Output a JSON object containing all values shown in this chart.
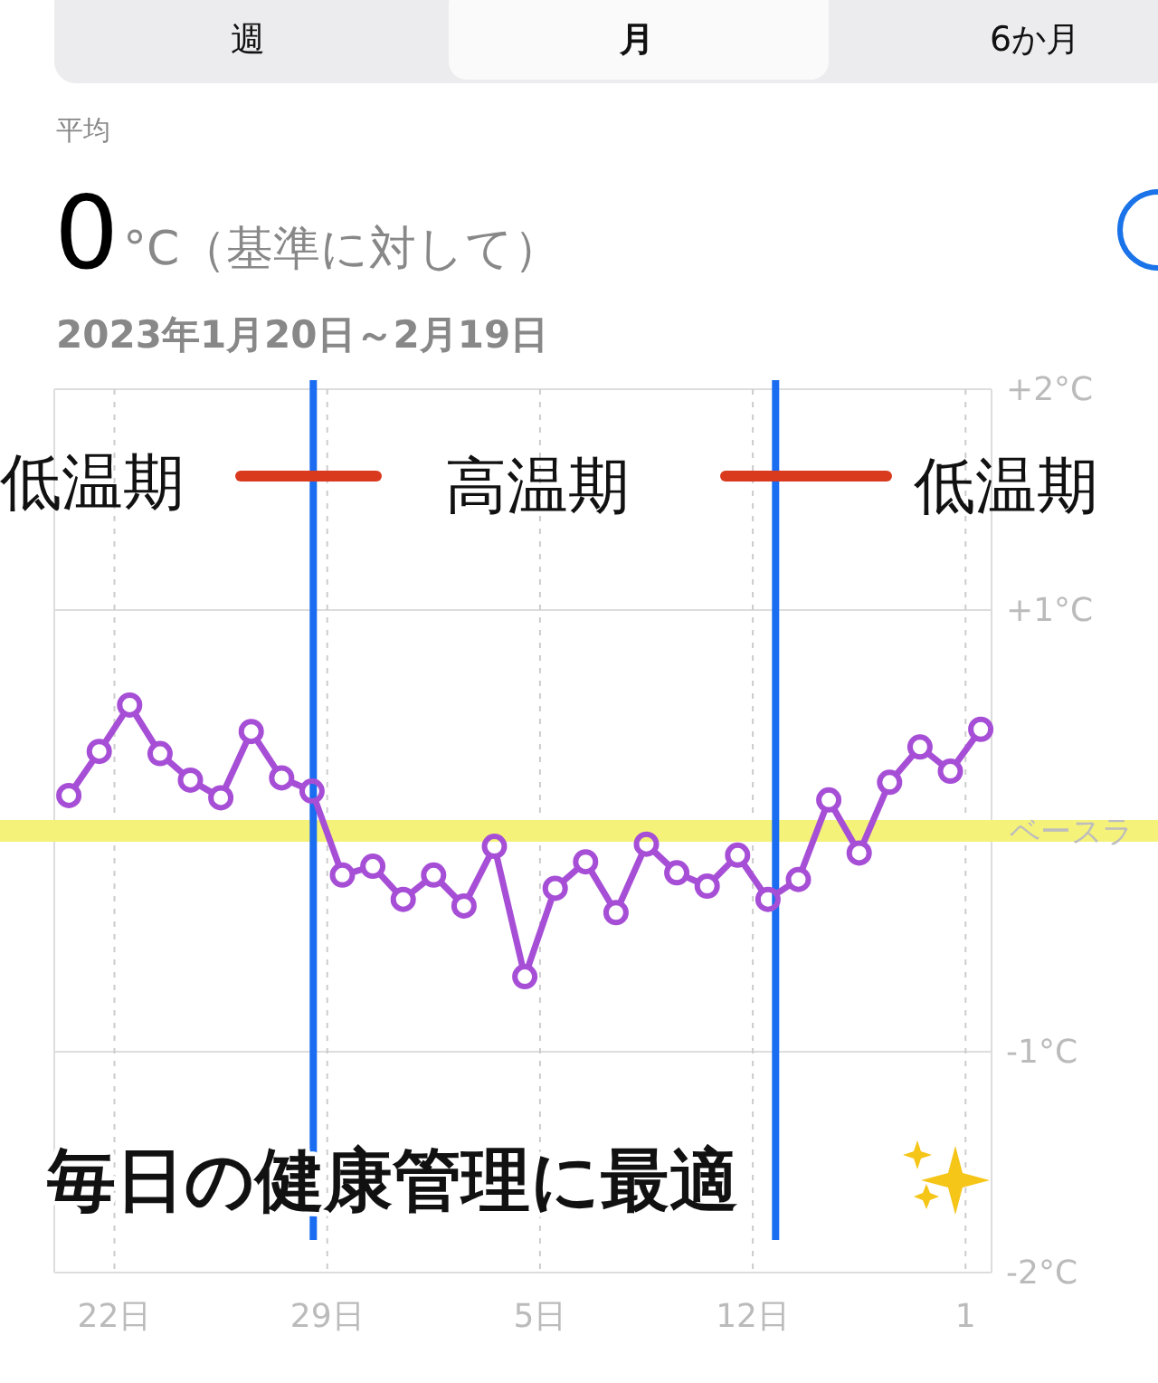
{
  "chart_data": {
    "type": "line",
    "title": "0",
    "subtitle": "°C（基準に対して）",
    "annotations": [
      "週",
      "月",
      "6か月",
      "平均",
      "2023年1月20日～2月19日",
      "低温期",
      "高温期",
      "低温期",
      "毎日の健康管理に最適"
    ],
    "x": [
      "2023-01-20T12:00",
      "2023-01-21T12:00",
      "2023-01-22T12:00",
      "2023-01-23T12:00",
      "2023-01-24T12:00",
      "2023-01-25T12:00",
      "2023-01-26T12:00",
      "2023-01-27T12:00",
      "2023-01-28T12:00",
      "2023-01-29T12:00",
      "2023-01-30T12:00",
      "2023-01-31T12:00",
      "2023-02-01T12:00",
      "2023-02-02T12:00",
      "2023-02-03T12:00",
      "2023-02-04T12:00",
      "2023-02-05T12:00",
      "2023-02-06T12:00",
      "2023-02-07T12:00",
      "2023-02-08T12:00",
      "2023-02-09T12:00",
      "2023-02-10T12:00",
      "2023-02-11T12:00",
      "2023-02-12T12:00",
      "2023-02-13T12:00",
      "2023-02-14T12:00",
      "2023-02-15T12:00",
      "2023-02-16T12:00",
      "2023-02-17T12:00",
      "2023-02-18T12:00",
      "2023-02-19T12:00"
    ],
    "series": [
      {
        "color": "#a64fd6",
        "values": [
          0.16,
          0.36,
          0.57,
          0.35,
          0.23,
          0.15,
          0.45,
          0.24,
          0.18,
          -0.2,
          -0.16,
          -0.31,
          -0.2,
          -0.34,
          -0.07,
          -0.66,
          -0.26,
          -0.14,
          -0.37,
          -0.06,
          -0.19,
          -0.25,
          -0.11,
          -0.31,
          -0.22,
          0.14,
          -0.1,
          0.22,
          0.38,
          0.27,
          0.46
        ]
      }
    ],
    "xlim": [
      "2023-01-20T00:30",
      "2023-02-19T20:30"
    ],
    "xticks": [
      {
        "value": "2023-01-22",
        "label": "22日"
      },
      {
        "value": "2023-01-29",
        "label": "29日"
      },
      {
        "value": "2023-02-05",
        "label": "5日"
      },
      {
        "value": "2023-02-12",
        "label": "12日"
      },
      {
        "value": "2023-02-19",
        "label": "1"
      }
    ],
    "ylim": [
      -2,
      2
    ],
    "yticks": [
      {
        "value": -2,
        "label": "-2°C"
      },
      {
        "value": -1,
        "label": "-1°C"
      },
      {
        "value": 1,
        "label": "+1°C"
      },
      {
        "value": 2,
        "label": "+2°C"
      }
    ],
    "grid": true,
    "marker": "circle",
    "line_style": "solid",
    "ref_lines": [
      {
        "axis": "y",
        "value": 0,
        "label": "ベースラ",
        "color": "#f5f27a"
      },
      {
        "axis": "x",
        "value": "2023-01-28T13:00",
        "color": "#1a6cf0"
      },
      {
        "axis": "x",
        "value": "2023-02-12T18:00",
        "color": "#1a6cf0"
      }
    ]
  }
}
